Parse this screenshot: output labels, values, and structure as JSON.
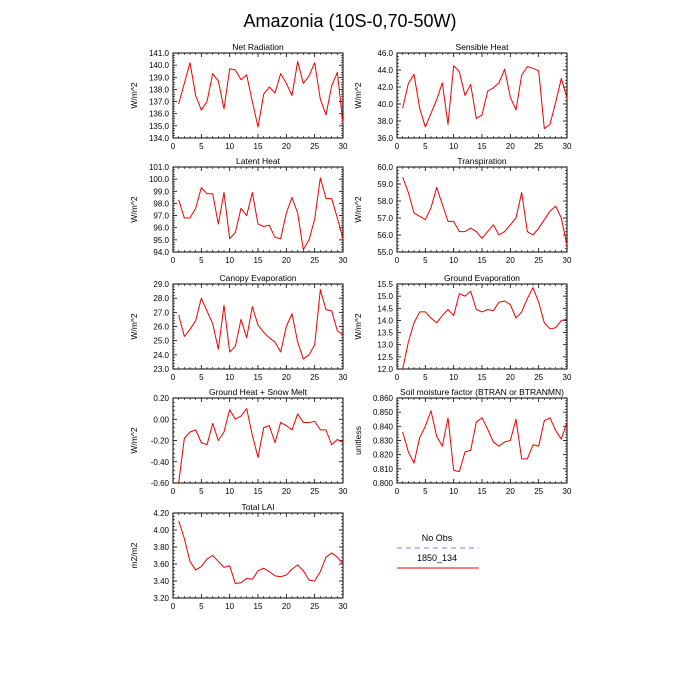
{
  "title": "Amazonia (10S-0,70-50W)",
  "legend": {
    "placement": "bottom-right",
    "entries": [
      {
        "label": "No Obs",
        "color": "#9999ee",
        "style": "dashed"
      },
      {
        "label": "1850_134",
        "color": "#ee0000",
        "style": "solid"
      }
    ]
  },
  "chart_data": [
    {
      "type": "line",
      "title": "Net Radiation",
      "ylabel": "W/m^2",
      "xlim": [
        0,
        30
      ],
      "ylim": [
        134.0,
        141.0
      ],
      "xticks": [
        "0",
        "5",
        "10",
        "15",
        "20",
        "25",
        "30"
      ],
      "yticks": [
        "134.0",
        "135.0",
        "136.0",
        "137.0",
        "138.0",
        "139.0",
        "140.0",
        "141.0"
      ],
      "series": [
        {
          "name": "1850_134",
          "color": "#ee0000",
          "x": [
            1,
            2,
            3,
            4,
            5,
            6,
            7,
            8,
            9,
            10,
            11,
            12,
            13,
            14,
            15,
            16,
            17,
            18,
            19,
            20,
            21,
            22,
            23,
            24,
            25,
            26,
            27,
            28,
            29,
            30
          ],
          "values": [
            136.8,
            138.5,
            140.2,
            137.5,
            136.3,
            137.0,
            139.3,
            138.7,
            136.4,
            139.7,
            139.6,
            138.8,
            139.2,
            137.0,
            134.9,
            137.6,
            138.2,
            137.7,
            139.3,
            138.5,
            137.5,
            140.3,
            138.5,
            139.1,
            140.2,
            137.2,
            135.9,
            138.3,
            139.4,
            135.2
          ]
        }
      ]
    },
    {
      "type": "line",
      "title": "Sensible Heat",
      "ylabel": "W/m^2",
      "xlim": [
        0,
        30
      ],
      "ylim": [
        36.0,
        46.0
      ],
      "xticks": [
        "0",
        "5",
        "10",
        "15",
        "20",
        "25",
        "30"
      ],
      "yticks": [
        "36.0",
        "38.0",
        "40.0",
        "42.0",
        "44.0",
        "46.0"
      ],
      "series": [
        {
          "name": "1850_134",
          "color": "#ee0000",
          "x": [
            1,
            2,
            3,
            4,
            5,
            6,
            7,
            8,
            9,
            10,
            11,
            12,
            13,
            14,
            15,
            16,
            17,
            18,
            19,
            20,
            21,
            22,
            23,
            24,
            25,
            26,
            27,
            28,
            29,
            30
          ],
          "values": [
            39.5,
            42.4,
            43.5,
            39.5,
            37.3,
            38.9,
            40.5,
            42.5,
            37.6,
            44.5,
            43.8,
            41.0,
            42.3,
            38.3,
            38.7,
            41.5,
            41.9,
            42.5,
            44.1,
            40.8,
            39.3,
            43.4,
            44.4,
            44.2,
            43.9,
            37.1,
            37.6,
            40.2,
            43.0,
            40.7
          ]
        }
      ]
    },
    {
      "type": "line",
      "title": "Latent Heat",
      "ylabel": "W/m^2",
      "xlim": [
        0,
        30
      ],
      "ylim": [
        94.0,
        101.0
      ],
      "xticks": [
        "0",
        "5",
        "10",
        "15",
        "20",
        "25",
        "30"
      ],
      "yticks": [
        "94.0",
        "95.0",
        "96.0",
        "97.0",
        "98.0",
        "99.0",
        "100.0",
        "101.0"
      ],
      "series": [
        {
          "name": "1850_134",
          "color": "#ee0000",
          "x": [
            1,
            2,
            3,
            4,
            5,
            6,
            7,
            8,
            9,
            10,
            11,
            12,
            13,
            14,
            15,
            16,
            17,
            18,
            19,
            20,
            21,
            22,
            23,
            24,
            25,
            26,
            27,
            28,
            29,
            30
          ],
          "values": [
            98.3,
            96.8,
            96.8,
            97.6,
            99.3,
            98.8,
            98.8,
            96.3,
            98.9,
            95.1,
            95.6,
            97.6,
            97.0,
            98.9,
            96.3,
            96.1,
            96.2,
            95.2,
            95.1,
            97.2,
            98.5,
            97.2,
            94.2,
            95.0,
            96.7,
            100.1,
            98.4,
            98.4,
            96.8,
            95.1
          ]
        }
      ]
    },
    {
      "type": "line",
      "title": "Transpiration",
      "ylabel": "W/m^2",
      "xlim": [
        0,
        30
      ],
      "ylim": [
        55.0,
        60.0
      ],
      "xticks": [
        "0",
        "5",
        "10",
        "15",
        "20",
        "25",
        "30"
      ],
      "yticks": [
        "55.0",
        "56.0",
        "57.0",
        "58.0",
        "59.0",
        "60.0"
      ],
      "series": [
        {
          "name": "1850_134",
          "color": "#ee0000",
          "x": [
            1,
            2,
            3,
            4,
            5,
            6,
            7,
            8,
            9,
            10,
            11,
            12,
            13,
            14,
            15,
            16,
            17,
            18,
            19,
            20,
            21,
            22,
            23,
            24,
            25,
            26,
            27,
            28,
            29,
            30
          ],
          "values": [
            59.4,
            58.5,
            57.3,
            57.1,
            56.9,
            57.6,
            58.8,
            57.8,
            56.8,
            56.8,
            56.2,
            56.2,
            56.4,
            56.2,
            55.8,
            56.2,
            56.6,
            56.0,
            56.2,
            56.6,
            57.0,
            58.5,
            56.2,
            56.0,
            56.4,
            56.9,
            57.4,
            57.7,
            57.0,
            55.4
          ]
        }
      ]
    },
    {
      "type": "line",
      "title": "Canopy Evaporation",
      "ylabel": "W/m^2",
      "xlim": [
        0,
        30
      ],
      "ylim": [
        23.0,
        29.0
      ],
      "xticks": [
        "0",
        "5",
        "10",
        "15",
        "20",
        "25",
        "30"
      ],
      "yticks": [
        "23.0",
        "24.0",
        "25.0",
        "26.0",
        "27.0",
        "28.0",
        "29.0"
      ],
      "series": [
        {
          "name": "1850_134",
          "color": "#ee0000",
          "x": [
            1,
            2,
            3,
            4,
            5,
            6,
            7,
            8,
            9,
            10,
            11,
            12,
            13,
            14,
            15,
            16,
            17,
            18,
            19,
            20,
            21,
            22,
            23,
            24,
            25,
            26,
            27,
            28,
            29,
            30
          ],
          "values": [
            26.8,
            25.3,
            25.8,
            26.4,
            28.0,
            27.1,
            26.2,
            24.4,
            27.5,
            24.2,
            24.6,
            26.5,
            25.2,
            27.4,
            26.1,
            25.6,
            25.2,
            24.9,
            24.2,
            26.0,
            26.9,
            24.9,
            23.7,
            24.0,
            24.7,
            28.6,
            27.2,
            27.1,
            25.7,
            25.4
          ]
        }
      ]
    },
    {
      "type": "line",
      "title": "Ground Evaporation",
      "ylabel": "W/m^2",
      "xlim": [
        0,
        30
      ],
      "ylim": [
        12.0,
        15.5
      ],
      "xticks": [
        "0",
        "5",
        "10",
        "15",
        "20",
        "25",
        "30"
      ],
      "yticks": [
        "12.0",
        "12.5",
        "13.0",
        "13.5",
        "14.0",
        "14.5",
        "15.0",
        "15.5"
      ],
      "series": [
        {
          "name": "1850_134",
          "color": "#ee0000",
          "x": [
            1,
            2,
            3,
            4,
            5,
            6,
            7,
            8,
            9,
            10,
            11,
            12,
            13,
            14,
            15,
            16,
            17,
            18,
            19,
            20,
            21,
            22,
            23,
            24,
            25,
            26,
            27,
            28,
            29,
            30
          ],
          "values": [
            12.0,
            13.1,
            13.9,
            14.35,
            14.35,
            14.1,
            13.9,
            14.2,
            14.45,
            14.2,
            15.1,
            15.0,
            15.2,
            14.45,
            14.35,
            14.45,
            14.4,
            14.75,
            14.8,
            14.65,
            14.1,
            14.35,
            14.9,
            15.35,
            14.75,
            13.9,
            13.65,
            13.7,
            14.0,
            14.05
          ]
        }
      ]
    },
    {
      "type": "line",
      "title": "Ground Heat + Snow Melt",
      "ylabel": "W/m^2",
      "xlim": [
        0,
        30
      ],
      "ylim": [
        -0.6,
        0.2
      ],
      "xticks": [
        "0",
        "5",
        "10",
        "15",
        "20",
        "25",
        "30"
      ],
      "yticks": [
        "-0.60",
        "-0.40",
        "-0.20",
        "0.00",
        "0.20"
      ],
      "series": [
        {
          "name": "1850_134",
          "color": "#ee0000",
          "x": [
            1,
            2,
            3,
            4,
            5,
            6,
            7,
            8,
            9,
            10,
            11,
            12,
            13,
            14,
            15,
            16,
            17,
            18,
            19,
            20,
            21,
            22,
            23,
            24,
            25,
            26,
            27,
            28,
            29,
            30
          ],
          "values": [
            -0.6,
            -0.18,
            -0.12,
            -0.1,
            -0.22,
            -0.24,
            -0.04,
            -0.2,
            -0.12,
            0.09,
            0.0,
            0.03,
            0.1,
            -0.15,
            -0.36,
            -0.08,
            -0.06,
            -0.22,
            -0.03,
            -0.06,
            -0.1,
            0.05,
            -0.03,
            -0.03,
            -0.02,
            -0.1,
            -0.1,
            -0.24,
            -0.19,
            -0.22
          ]
        }
      ]
    },
    {
      "type": "line",
      "title": "Soil moisture factor (BTRAN or BTRANMN)",
      "ylabel": "unitless",
      "xlim": [
        0,
        30
      ],
      "ylim": [
        0.8,
        0.86
      ],
      "xticks": [
        "0",
        "5",
        "10",
        "15",
        "20",
        "25",
        "30"
      ],
      "yticks": [
        "0.800",
        "0.810",
        "0.820",
        "0.830",
        "0.840",
        "0.850",
        "0.860"
      ],
      "series": [
        {
          "name": "1850_134",
          "color": "#ee0000",
          "x": [
            1,
            2,
            3,
            4,
            5,
            6,
            7,
            8,
            9,
            10,
            11,
            12,
            13,
            14,
            15,
            16,
            17,
            18,
            19,
            20,
            21,
            22,
            23,
            24,
            25,
            26,
            27,
            28,
            29,
            30
          ],
          "values": [
            0.836,
            0.822,
            0.814,
            0.832,
            0.84,
            0.851,
            0.833,
            0.826,
            0.846,
            0.809,
            0.808,
            0.822,
            0.823,
            0.843,
            0.846,
            0.838,
            0.829,
            0.826,
            0.829,
            0.83,
            0.845,
            0.817,
            0.817,
            0.827,
            0.826,
            0.844,
            0.846,
            0.837,
            0.831,
            0.843
          ]
        }
      ]
    },
    {
      "type": "line",
      "title": "Total LAI",
      "ylabel": "m2/m2",
      "xlim": [
        0,
        30
      ],
      "ylim": [
        3.2,
        4.2
      ],
      "xticks": [
        "0",
        "5",
        "10",
        "15",
        "20",
        "25",
        "30"
      ],
      "yticks": [
        "3.20",
        "3.40",
        "3.60",
        "3.80",
        "4.00",
        "4.20"
      ],
      "series": [
        {
          "name": "1850_134",
          "color": "#ee0000",
          "x": [
            1,
            2,
            3,
            4,
            5,
            6,
            7,
            8,
            9,
            10,
            11,
            12,
            13,
            14,
            15,
            16,
            17,
            18,
            19,
            20,
            21,
            22,
            23,
            24,
            25,
            26,
            27,
            28,
            29,
            30
          ],
          "values": [
            4.11,
            3.9,
            3.63,
            3.53,
            3.57,
            3.66,
            3.7,
            3.63,
            3.56,
            3.58,
            3.37,
            3.38,
            3.43,
            3.42,
            3.52,
            3.55,
            3.51,
            3.46,
            3.45,
            3.47,
            3.54,
            3.59,
            3.52,
            3.41,
            3.4,
            3.51,
            3.68,
            3.73,
            3.68,
            3.6
          ]
        }
      ]
    }
  ]
}
